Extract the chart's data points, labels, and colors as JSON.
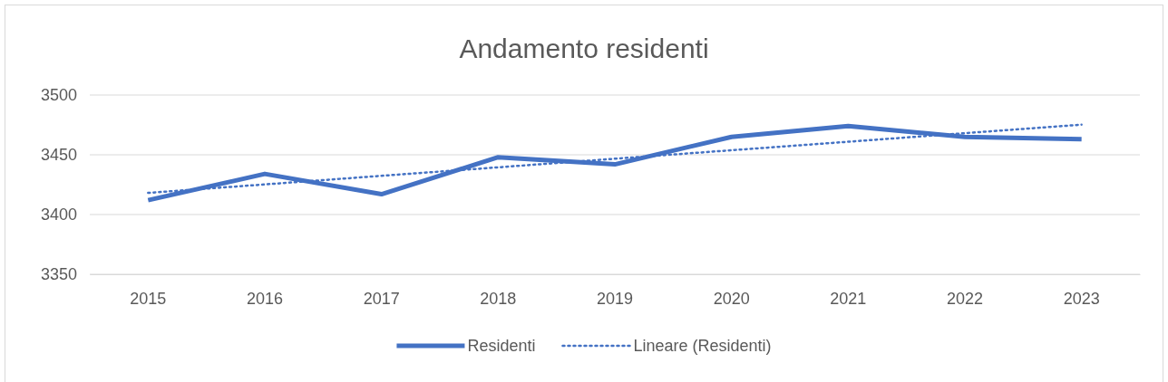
{
  "chart_data": {
    "type": "line",
    "title": "Andamento residenti",
    "categories": [
      "2015",
      "2016",
      "2017",
      "2018",
      "2019",
      "2020",
      "2021",
      "2022",
      "2023"
    ],
    "series": [
      {
        "name": "Residenti",
        "color": "#4472c4",
        "values": [
          3412,
          3434,
          3417,
          3448,
          3442,
          3465,
          3474,
          3465,
          3463
        ]
      },
      {
        "name": "Lineare (Residenti)",
        "color": "#4472c4",
        "line_style": "dotted",
        "values": [
          3418.1,
          3425.2,
          3432.4,
          3439.5,
          3446.7,
          3453.8,
          3460.9,
          3468.1,
          3475.2
        ]
      }
    ],
    "ylim": [
      3350,
      3500
    ],
    "yticks": [
      3350,
      3400,
      3450,
      3500
    ],
    "grid": "y",
    "legend": "bottom",
    "marker": "none",
    "line_style": "solid"
  }
}
